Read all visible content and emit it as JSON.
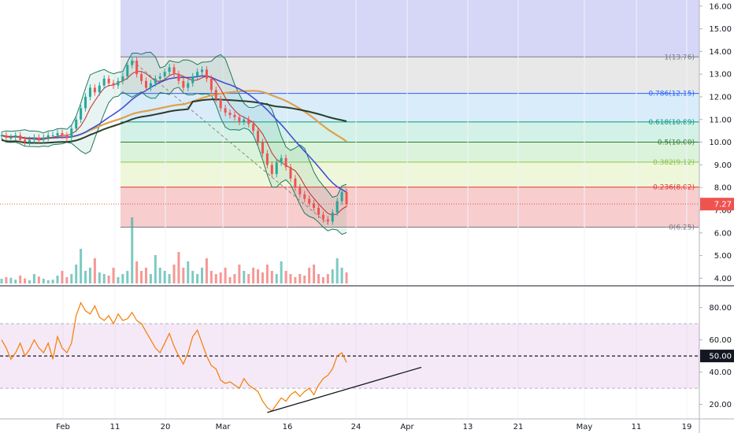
{
  "chart_data": {
    "type": "line",
    "panes": {
      "price": {
        "y_axis_ticks": [
          "16.00",
          "15.00",
          "14.00",
          "13.00",
          "12.00",
          "11.00",
          "10.00",
          "9.00",
          "8.00",
          "7.00",
          "6.00",
          "5.00",
          "4.00"
        ],
        "ylim": [
          3.7,
          16.2
        ],
        "current_price_label": "7.27",
        "current_price": 7.27,
        "fib_levels": [
          {
            "ratio": 1,
            "price": 13.76,
            "label": "1(13.76)",
            "color": "#787b86"
          },
          {
            "ratio": 0.786,
            "price": 12.15,
            "label": "0.786(12.15)",
            "color": "#2962ff"
          },
          {
            "ratio": 0.618,
            "price": 10.89,
            "label": "0.618(10.89)",
            "color": "#089981"
          },
          {
            "ratio": 0.5,
            "price": 10.0,
            "label": "0.5(10.00)",
            "color": "#2e7d32"
          },
          {
            "ratio": 0.382,
            "price": 9.12,
            "label": "0.382(9.12)",
            "color": "#8bc34a"
          },
          {
            "ratio": 0.236,
            "price": 8.02,
            "label": "0.236(8.02)",
            "color": "#e53935"
          },
          {
            "ratio": 0,
            "price": 6.25,
            "label": "0(6.25)",
            "color": "#787b86"
          }
        ],
        "close_series": [
          10.3,
          10.2,
          10.2,
          10.3,
          10.1,
          10.0,
          10.1,
          10.2,
          10.1,
          10.2,
          10.3,
          10.3,
          10.4,
          10.3,
          10.2,
          10.6,
          11.0,
          11.5,
          12.0,
          12.4,
          12.2,
          12.5,
          12.8,
          12.6,
          12.5,
          12.7,
          12.9,
          13.4,
          13.6,
          13.0,
          12.7,
          12.4,
          12.6,
          12.8,
          12.9,
          13.1,
          13.3,
          13.0,
          12.7,
          12.4,
          12.6,
          12.9,
          13.1,
          13.2,
          12.8,
          12.3,
          11.9,
          11.5,
          11.3,
          11.2,
          11.1,
          10.9,
          11.0,
          10.8,
          10.5,
          10.0,
          9.5,
          9.0,
          8.6,
          9.1,
          9.3,
          8.9,
          8.4,
          8.0,
          7.7,
          7.5,
          7.3,
          7.1,
          6.8,
          6.6,
          6.5,
          6.9,
          7.4,
          7.8,
          7.27
        ]
      },
      "volume": {
        "values": [
          0.15,
          0.2,
          0.18,
          0.12,
          0.25,
          0.16,
          0.1,
          0.3,
          0.22,
          0.15,
          0.1,
          0.12,
          0.25,
          0.4,
          0.2,
          0.3,
          0.6,
          1.1,
          0.4,
          0.5,
          0.8,
          0.35,
          0.3,
          0.25,
          0.5,
          0.2,
          0.3,
          0.4,
          2.1,
          0.7,
          0.4,
          0.5,
          0.3,
          0.9,
          0.5,
          0.4,
          0.3,
          0.6,
          1.0,
          0.5,
          0.7,
          0.4,
          0.3,
          0.5,
          0.8,
          0.4,
          0.3,
          0.35,
          0.5,
          0.2,
          0.3,
          0.6,
          0.4,
          0.3,
          0.5,
          0.45,
          0.35,
          0.6,
          0.4,
          0.3,
          0.7,
          0.4,
          0.3,
          0.2,
          0.3,
          0.25,
          0.5,
          0.6,
          0.3,
          0.2,
          0.3,
          0.45,
          0.8,
          0.5,
          0.35
        ]
      },
      "rsi": {
        "y_axis_ticks": [
          "80.00",
          "60.00",
          "40.00",
          "20.00"
        ],
        "ylim": [
          12,
          92
        ],
        "midline_label": "50.00",
        "upper_band": 70,
        "lower_band": 30,
        "values": [
          60,
          55,
          48,
          52,
          58,
          50,
          54,
          60,
          55,
          52,
          58,
          48,
          62,
          55,
          52,
          58,
          75,
          83,
          78,
          76,
          81,
          74,
          72,
          75,
          70,
          76,
          72,
          73,
          77,
          72,
          70,
          65,
          60,
          55,
          52,
          58,
          64,
          56,
          50,
          45,
          52,
          62,
          66,
          58,
          50,
          44,
          42,
          35,
          33,
          34,
          32,
          30,
          36,
          32,
          30,
          28,
          22,
          18,
          16,
          20,
          24,
          22,
          26,
          28,
          25,
          28,
          30,
          26,
          32,
          36,
          38,
          42,
          50,
          52,
          46
        ]
      },
      "x_axis_ticks": [
        "Feb",
        "11",
        "20",
        "Mar",
        "16",
        "24",
        "Apr",
        "13",
        "21",
        "May",
        "11",
        "19"
      ]
    }
  }
}
